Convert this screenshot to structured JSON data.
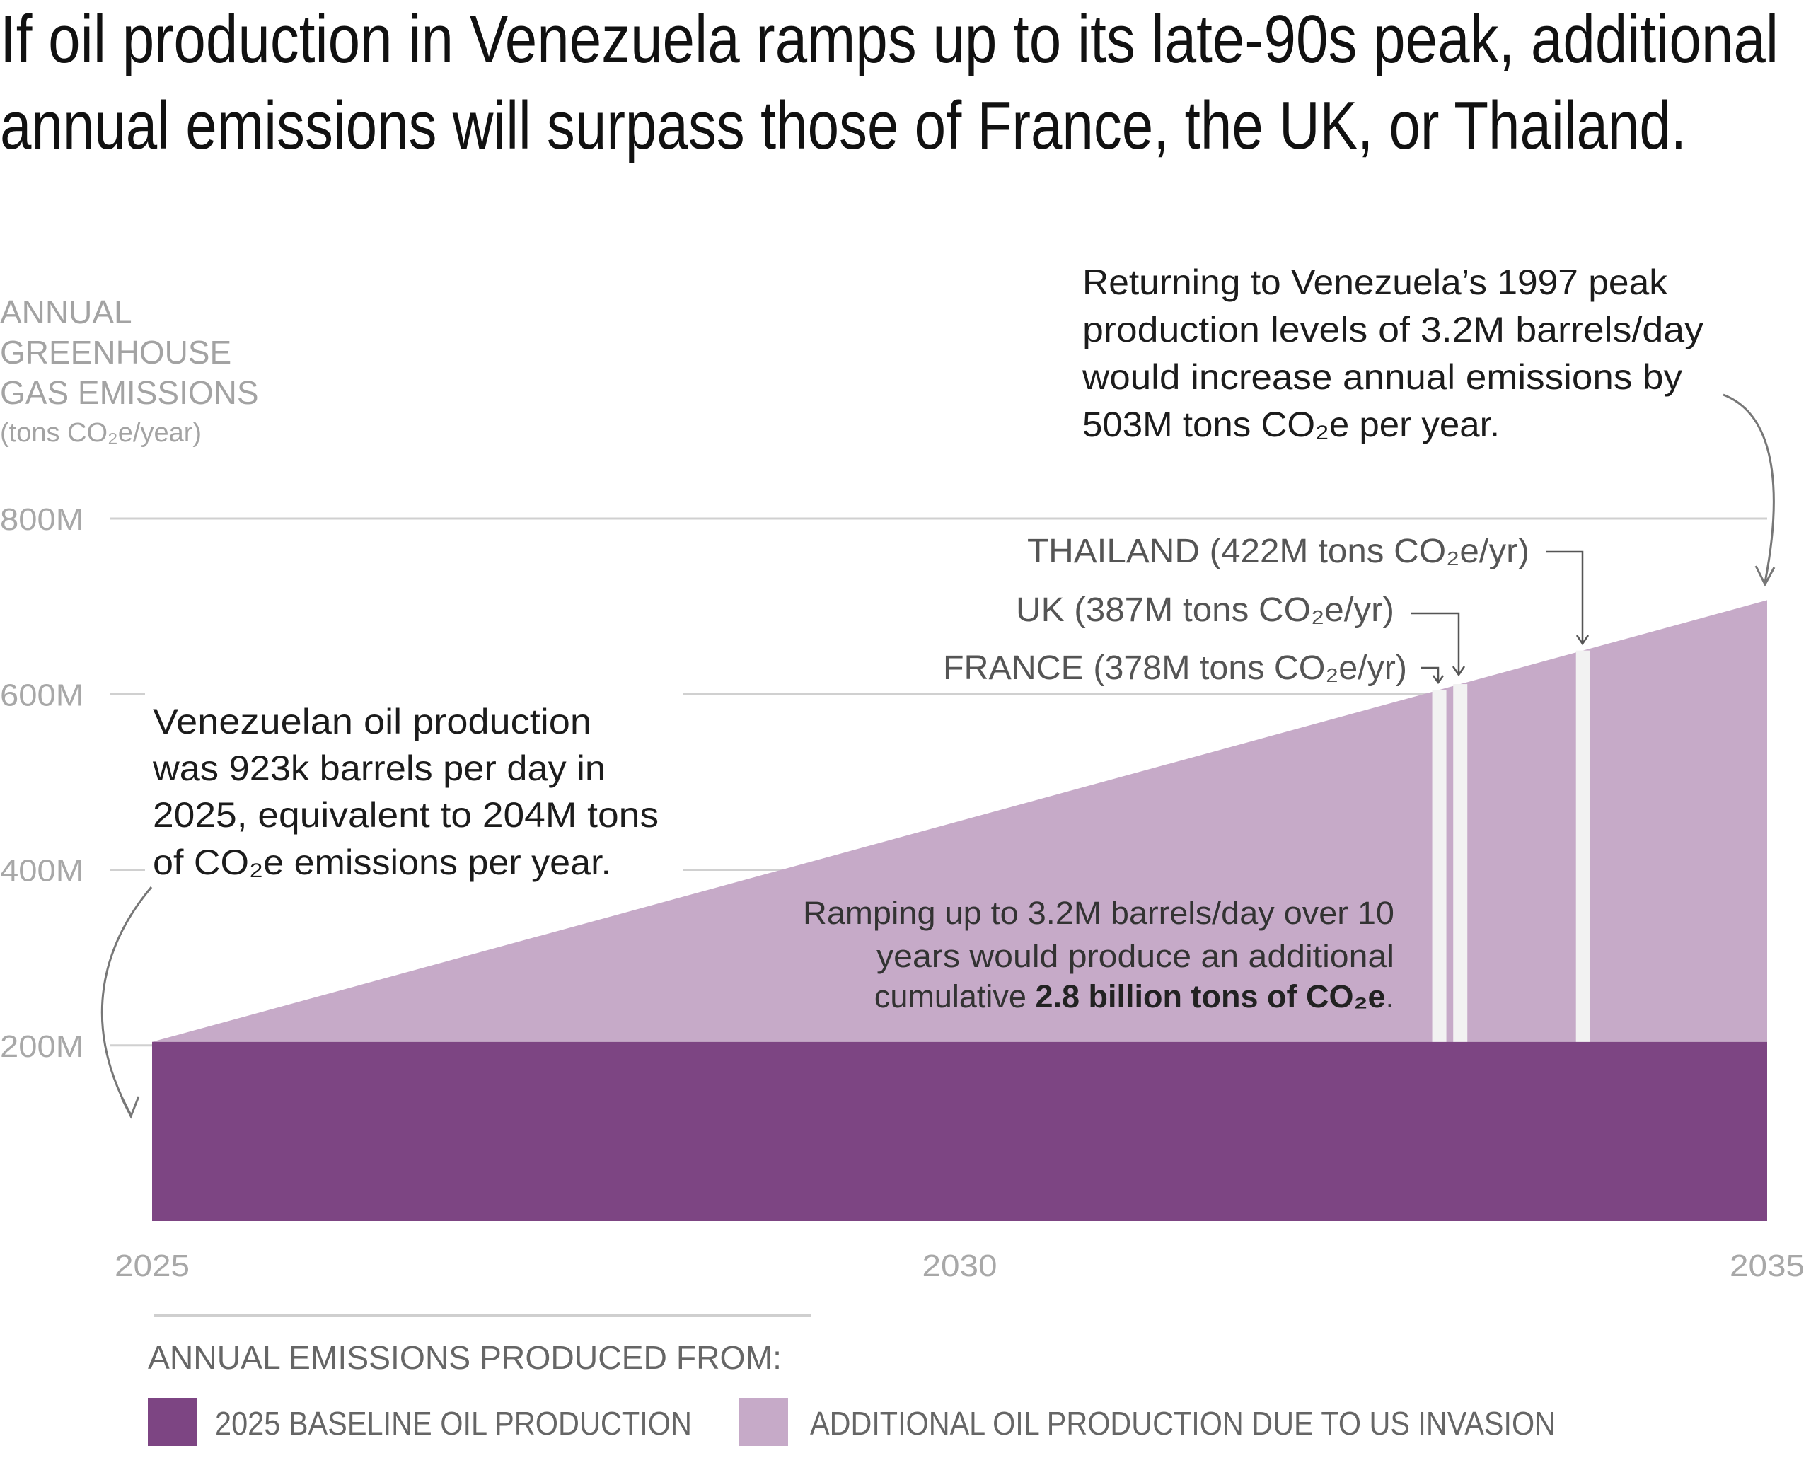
{
  "title": {
    "line1": "If oil production in Venezuela ramps up to its late-90s peak, additional",
    "line2": "annual emissions will surpass those of France, the UK, or Thailand."
  },
  "annotations": {
    "left": [
      "Venezuelan oil production",
      "was 923k barrels per day in",
      "2025, equivalent to 204M tons",
      "of CO₂e emissions per year."
    ],
    "top_right": [
      "Returning to Venezuela’s 1997 peak",
      "production levels of 3.2M barrels/day",
      "would increase annual emissions by",
      "503M tons CO₂e per year."
    ],
    "middle": [
      "Ramping up to 3.2M barrels/day over 10",
      "years would produce an additional"
    ],
    "middle_last_prefix": "cumulative ",
    "middle_last_bold": "2.8 billion tons of CO₂e",
    "middle_last_suffix": "."
  },
  "colors": {
    "baseline": "#7d4583",
    "additional": "#c6aac8",
    "marker": "#f2f2f2"
  },
  "chart_data": {
    "type": "area",
    "title": "",
    "ylabel_lines": [
      "ANNUAL",
      "GREENHOUSE",
      "GAS EMISSIONS"
    ],
    "ylabel_unit": "(tons CO₂e/year)",
    "xlabel": "",
    "x_ticks": [
      "2025",
      "2030",
      "2035"
    ],
    "y_ticks": [
      "200M",
      "400M",
      "600M",
      "800M"
    ],
    "y_tick_values": [
      200,
      400,
      600,
      800
    ],
    "xlim": [
      2025,
      2035
    ],
    "ylim": [
      0,
      800
    ],
    "grid": true,
    "series": [
      {
        "name": "2025 BASELINE OIL PRODUCTION",
        "x": [
          2025,
          2035
        ],
        "y": [
          204,
          204
        ]
      },
      {
        "name": "ADDITIONAL OIL PRODUCTION DUE TO US INVASION",
        "x": [
          2025,
          2035
        ],
        "y": [
          0,
          503
        ]
      }
    ],
    "markers": [
      {
        "label": "FRANCE (378M tons CO₂e/yr)",
        "value": 378,
        "x": 2032.97
      },
      {
        "label": "UK (387M tons CO₂e/yr)",
        "value": 387,
        "x": 2033.1
      },
      {
        "label": "THAILAND (422M tons CO₂e/yr)",
        "value": 422,
        "x": 2033.86
      }
    ],
    "legend_title": "ANNUAL EMISSIONS PRODUCED FROM:",
    "legend_placement": "bottom"
  }
}
